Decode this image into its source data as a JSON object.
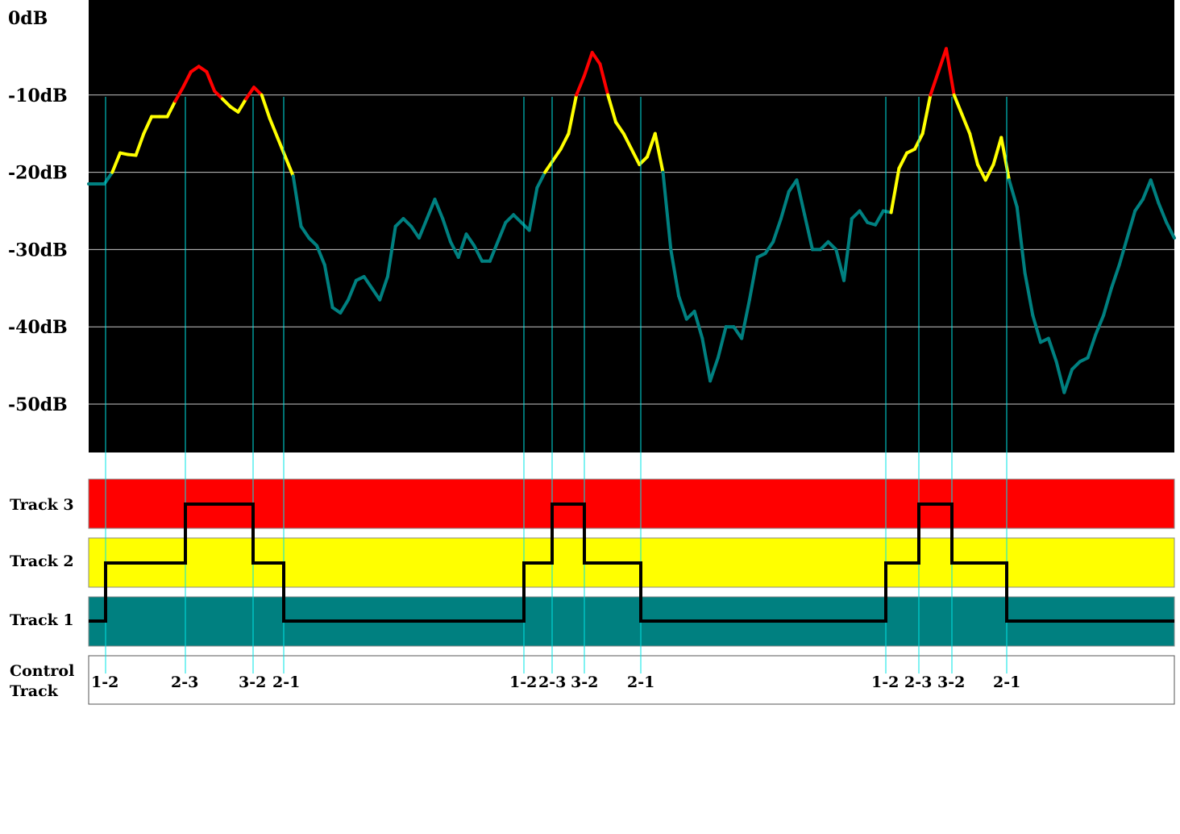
{
  "db_axis": {
    "labels": [
      "0dB",
      "-10dB",
      "-20dB",
      "-30dB",
      "-40dB",
      "-50dB"
    ],
    "values": [
      0,
      -10,
      -20,
      -30,
      -40,
      -50
    ],
    "range": [
      -58,
      0
    ]
  },
  "tracks": [
    {
      "name": "Track 3",
      "color": "#ff0000"
    },
    {
      "name": "Track 2",
      "color": "#ffff00"
    },
    {
      "name": "Track 1",
      "color": "#008080"
    }
  ],
  "control_track": {
    "line1": "Control",
    "line2": "Track"
  },
  "waveform": {
    "threshold_low_db": -20,
    "threshold_high_db": -10,
    "colors": {
      "low": "#008080",
      "mid": "#ffff00",
      "high": "#ff0000"
    },
    "points_db": [
      -21.5,
      -21.5,
      -21.5,
      -20,
      -17.5,
      -17.7,
      -17.8,
      -15,
      -12.8,
      -12.8,
      -12.8,
      -10.8,
      -9,
      -7,
      -6.3,
      -7,
      -9.5,
      -10.5,
      -11.5,
      -12.2,
      -10.5,
      -9,
      -10,
      -13,
      -15.5,
      -18,
      -20.5,
      -27,
      -28.5,
      -29.5,
      -32,
      -37.5,
      -38.2,
      -36.5,
      -34,
      -33.5,
      -35,
      -36.5,
      -33.5,
      -27,
      -26,
      -27,
      -28.5,
      -26,
      -23.5,
      -26,
      -29,
      -31,
      -28,
      -29.5,
      -31.5,
      -31.5,
      -29,
      -26.5,
      -25.5,
      -26.5,
      -27.5,
      -22,
      -20,
      -18.5,
      -17,
      -15,
      -10,
      -7.5,
      -4.5,
      -6,
      -10,
      -13.5,
      -15,
      -17,
      -19,
      -18,
      -15,
      -20,
      -30,
      -36,
      -39,
      -38,
      -41.5,
      -47,
      -44,
      -40,
      -40,
      -41.5,
      -36.5,
      -31,
      -30.5,
      -29,
      -26,
      -22.5,
      -21,
      -25.5,
      -30,
      -30,
      -29,
      -30,
      -34,
      -26,
      -25,
      -26.5,
      -26.8,
      -25,
      -25.2,
      -19.5,
      -17.5,
      -17,
      -15,
      -10,
      -7,
      -4,
      -10,
      -12.5,
      -15,
      -19,
      -21,
      -19,
      -15.5,
      -21,
      -24.5,
      -33,
      -38.5,
      -42,
      -41.5,
      -44.5,
      -48.5,
      -45.5,
      -44.5,
      -44,
      -41,
      -38.5,
      -35,
      -32,
      -28.5,
      -25,
      -23.5,
      -21,
      -24,
      -26.5,
      -28.5
    ]
  },
  "transitions": [
    {
      "label": "1-2",
      "step": "up",
      "to_level": 2,
      "marker": "a"
    },
    {
      "label": "2-3",
      "step": "up",
      "to_level": 3,
      "marker": "b"
    },
    {
      "label": "3-2",
      "step": "down",
      "to_level": 2,
      "marker": "c"
    },
    {
      "label": "2-1",
      "step": "down",
      "to_level": 1,
      "marker": "d"
    },
    {
      "label": "1-2",
      "step": "up",
      "to_level": 2,
      "marker": "e"
    },
    {
      "label": "2-3",
      "step": "up",
      "to_level": 3,
      "marker": "f"
    },
    {
      "label": "3-2",
      "step": "down",
      "to_level": 2,
      "marker": "g"
    },
    {
      "label": "2-1",
      "step": "down",
      "to_level": 1,
      "marker": "h"
    },
    {
      "label": "1-2",
      "step": "up",
      "to_level": 2,
      "marker": "i"
    },
    {
      "label": "2-3",
      "step": "up",
      "to_level": 3,
      "marker": "j"
    },
    {
      "label": "3-2",
      "step": "down",
      "to_level": 2,
      "marker": "k"
    },
    {
      "label": "2-1",
      "step": "down",
      "to_level": 1,
      "marker": "l"
    }
  ],
  "colors": {
    "plot_background": "#000000",
    "gridline": "#c8c8c8",
    "marker_line": "#00e5e5",
    "level_line": "#000000"
  }
}
